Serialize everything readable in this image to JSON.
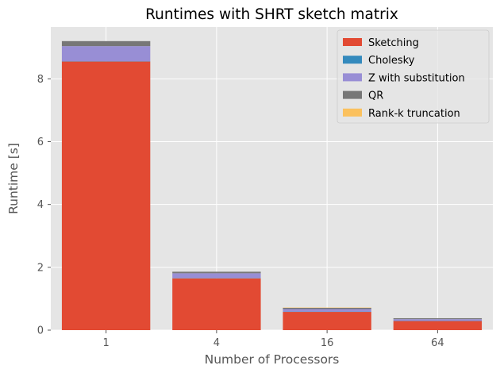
{
  "chart_data": {
    "type": "bar",
    "stacked": true,
    "title": "Runtimes with SHRT sketch matrix",
    "xlabel": "Number of Processors",
    "ylabel": "Runtime [s]",
    "categories": [
      "1",
      "4",
      "16",
      "64"
    ],
    "ylim": [
      0,
      9.65
    ],
    "yticks": [
      0,
      2,
      4,
      6,
      8
    ],
    "grid": true,
    "legend_position": "top-right",
    "series": [
      {
        "name": "Sketching",
        "color": "#E24A33",
        "values": [
          8.55,
          1.65,
          0.58,
          0.29
        ]
      },
      {
        "name": "Cholesky",
        "color": "#348ABD",
        "values": [
          0.01,
          0.01,
          0.01,
          0.01
        ]
      },
      {
        "name": "Z with substitution",
        "color": "#988ED5",
        "values": [
          0.48,
          0.15,
          0.08,
          0.05
        ]
      },
      {
        "name": "QR",
        "color": "#777777",
        "values": [
          0.16,
          0.05,
          0.04,
          0.03
        ]
      },
      {
        "name": "Rank-k truncation",
        "color": "#FBC15E",
        "values": [
          0.0,
          0.0,
          0.01,
          0.0
        ]
      }
    ]
  }
}
